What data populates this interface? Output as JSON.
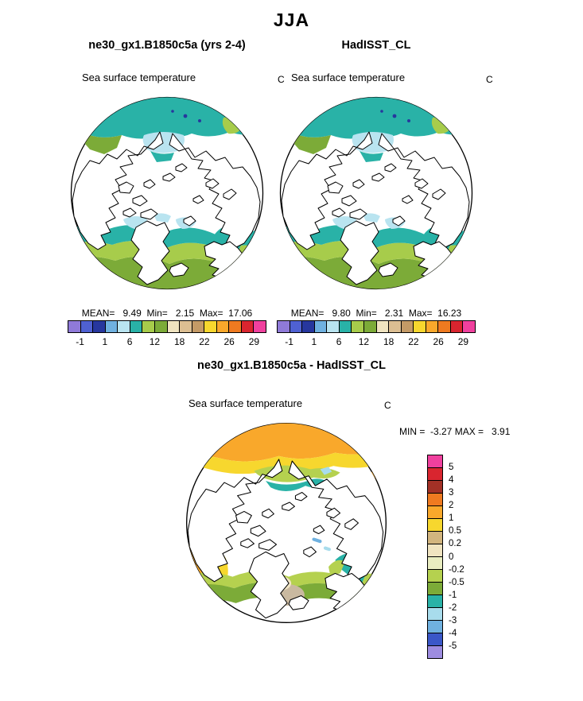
{
  "title": "JJA",
  "panels": [
    {
      "title": "ne30_gx1.B1850c5a (yrs 2-4)",
      "subtitle": "Sea surface temperature",
      "units": "C",
      "stats": "MEAN=   9.49  Min=   2.15  Max=  17.06"
    },
    {
      "title": "HadISST_CL",
      "subtitle": "Sea surface temperature",
      "units": "C",
      "stats": "MEAN=   9.80  Min=   2.31  Max=  16.23"
    }
  ],
  "diff": {
    "title": "ne30_gx1.B1850c5a - HadISST_CL",
    "subtitle": "Sea surface temperature",
    "units": "C",
    "stats": "MIN =  -3.27 MAX =   3.91"
  },
  "colorbars": {
    "sst": {
      "colors": [
        "#8f7ad8",
        "#4f61d2",
        "#27379e",
        "#6fb1e0",
        "#b9e4f0",
        "#29b2a7",
        "#a7cc4b",
        "#7cab38",
        "#f0e4c0",
        "#dcbe92",
        "#c49a66",
        "#f7d72e",
        "#f9a82b",
        "#ef7a20",
        "#d9252f",
        "#f0409e"
      ],
      "tick_labels": [
        "-1",
        "1",
        "6",
        "12",
        "18",
        "22",
        "26",
        "29"
      ]
    },
    "diff": {
      "colors": [
        "#f0409e",
        "#d9252f",
        "#a33126",
        "#ef7a20",
        "#f9a82b",
        "#f7d72e",
        "#d2b57e",
        "#f0e4c0",
        "#e9edc0",
        "#b5d14f",
        "#7cab38",
        "#29b2a7",
        "#a8dcec",
        "#6fb1e0",
        "#3a57c8",
        "#9d8ce0"
      ],
      "tick_labels": [
        "5",
        "4",
        "3",
        "2",
        "1",
        "0.5",
        "0.2",
        "0",
        "-0.2",
        "-0.5",
        "-1",
        "-2",
        "-3",
        "-4",
        "-5"
      ]
    }
  },
  "chart_data": [
    {
      "type": "heatmap",
      "panel": "top-left",
      "title": "ne30_gx1.B1850c5a (yrs 2-4)",
      "variable": "Sea surface temperature",
      "units": "C",
      "season": "JJA",
      "projection": "north polar map",
      "stats": {
        "mean": 9.49,
        "min": 2.15,
        "max": 17.06
      },
      "colorbar_ticks": [
        -1,
        1,
        6,
        12,
        18,
        22,
        26,
        29
      ]
    },
    {
      "type": "heatmap",
      "panel": "top-right",
      "title": "HadISST_CL",
      "variable": "Sea surface temperature",
      "units": "C",
      "season": "JJA",
      "projection": "north polar map",
      "stats": {
        "mean": 9.8,
        "min": 2.31,
        "max": 16.23
      },
      "colorbar_ticks": [
        -1,
        1,
        6,
        12,
        18,
        22,
        26,
        29
      ]
    },
    {
      "type": "heatmap",
      "panel": "bottom",
      "title": "ne30_gx1.B1850c5a - HadISST_CL",
      "variable": "Sea surface temperature",
      "units": "C",
      "season": "JJA",
      "projection": "north polar map",
      "stats": {
        "min": -3.27,
        "max": 3.91
      },
      "colorbar_ticks": [
        5,
        4,
        3,
        2,
        1,
        0.5,
        0.2,
        0,
        -0.2,
        -0.5,
        -1,
        -2,
        -3,
        -4,
        -5
      ]
    }
  ]
}
